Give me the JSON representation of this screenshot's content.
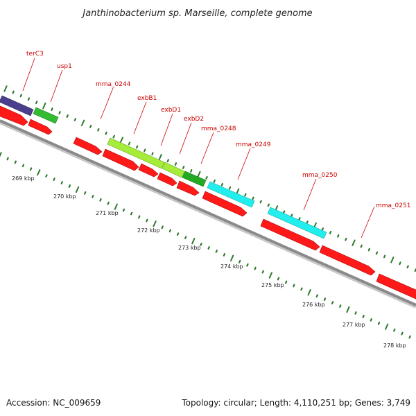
{
  "header": {
    "title": "Janthinobacterium sp. Marseille, complete genome"
  },
  "footer": {
    "accession": "Accession: NC_009659",
    "summary": "Topology: circular; Length: 4,110,251 bp; Genes: 3,749"
  },
  "colors": {
    "backbone": "#808080",
    "backbone_shadow": "#c0c0c0",
    "cds_forward": "#ff1a1a",
    "dna_metabolism": "#4a3f8c",
    "stress": "#33bb33",
    "transport_light": "#a6ec3a",
    "transport_dark": "#22aa22",
    "unknown": "#22eeee",
    "ticks": "#2d7a2d",
    "labels": "#cc0000"
  },
  "genes": [
    {
      "name": "terC3",
      "category": "dna_metabolism"
    },
    {
      "name": "usp1",
      "category": "stress"
    },
    {
      "name": "mma_0244",
      "category": "cds_forward"
    },
    {
      "name": "exbB1",
      "category": "transport_light"
    },
    {
      "name": "exbD1",
      "category": "transport_light"
    },
    {
      "name": "exbD2",
      "category": "transport_dark"
    },
    {
      "name": "mma_0248",
      "category": "unknown"
    },
    {
      "name": "mma_0249",
      "category": "unknown"
    },
    {
      "name": "mma_0250",
      "category": "unknown"
    },
    {
      "name": "mma_0251",
      "category": "cds_forward"
    }
  ],
  "ticks": [
    {
      "label": "269 kbp"
    },
    {
      "label": "270 kbp"
    },
    {
      "label": "271 kbp"
    },
    {
      "label": "272 kbp"
    },
    {
      "label": "273 kbp"
    },
    {
      "label": "274 kbp"
    },
    {
      "label": "275 kbp"
    },
    {
      "label": "276 kbp"
    },
    {
      "label": "277 kbp"
    },
    {
      "label": "278 kbp"
    }
  ]
}
